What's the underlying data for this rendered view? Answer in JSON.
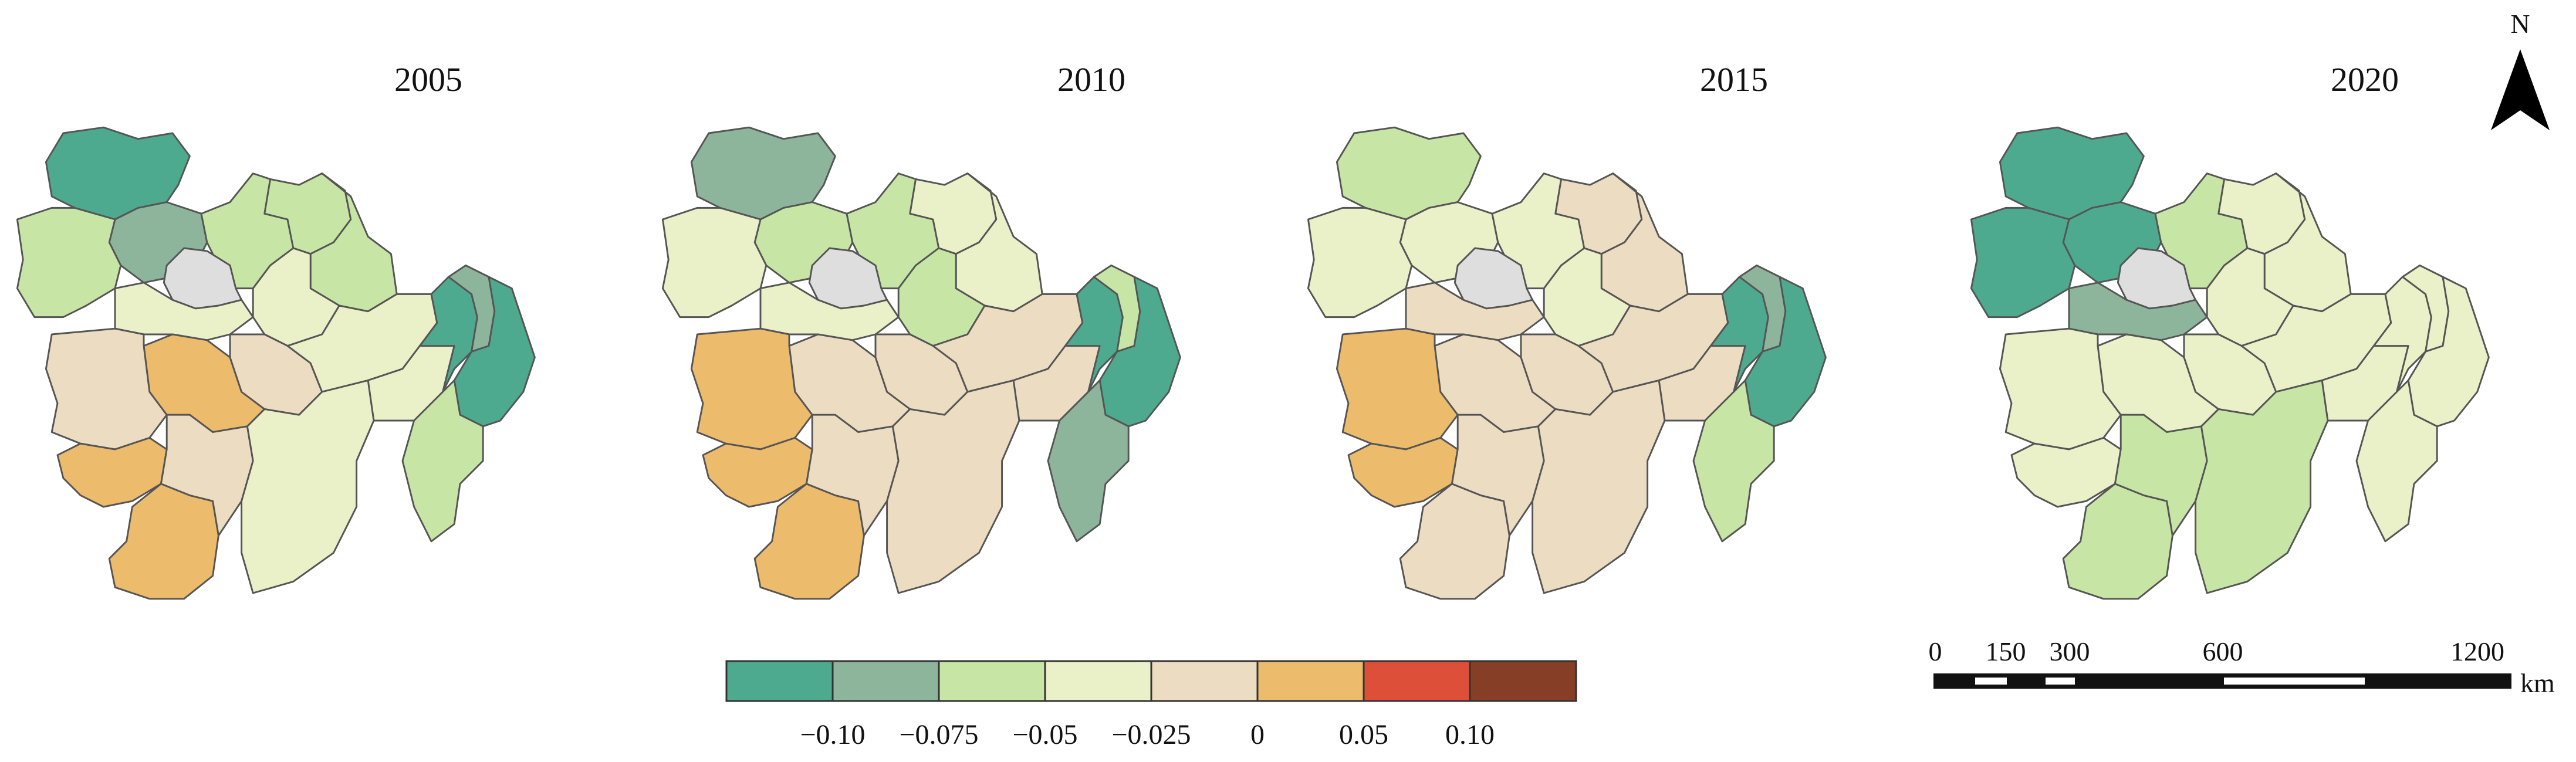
{
  "panels": [
    {
      "year": "2005",
      "classes": [
        "teal",
        "sage",
        "ltgreen",
        "cream",
        "tan",
        "orange",
        "gray"
      ]
    },
    {
      "year": "2010",
      "classes": [
        "teal",
        "sage",
        "ltgreen",
        "cream",
        "tan",
        "orange",
        "gray"
      ]
    },
    {
      "year": "2015",
      "classes": [
        "teal",
        "sage",
        "ltgreen",
        "cream",
        "tan",
        "orange",
        "gray"
      ]
    },
    {
      "year": "2020",
      "classes": [
        "teal",
        "sage",
        "ltgreen",
        "cream",
        "gray"
      ]
    }
  ],
  "maps": {
    "2005": {
      "nw": "teal",
      "nmid": "sage",
      "w": "ltgreen",
      "n2": "ltgreen",
      "ne1": "ltgreen",
      "ne2": "ltgreen",
      "c1": "cream",
      "c2": "orange",
      "c3": "tan",
      "sw1": "tan",
      "sw2": "orange",
      "s1": "orange",
      "s2": "tan",
      "se1": "cream",
      "se2": "cream",
      "e1": "teal",
      "e2": "sage",
      "e3": "teal",
      "e4": "ltgreen",
      "mid1": "cream",
      "mid2": "cream",
      "city": "gray"
    },
    "2010": {
      "nw": "sage",
      "nmid": "ltgreen",
      "w": "cream",
      "n2": "ltgreen",
      "ne1": "cream",
      "ne2": "cream",
      "c1": "cream",
      "c2": "tan",
      "c3": "tan",
      "sw1": "orange",
      "sw2": "orange",
      "s1": "orange",
      "s2": "tan",
      "se1": "tan",
      "se2": "tan",
      "e1": "teal",
      "e2": "ltgreen",
      "e3": "teal",
      "e4": "sage",
      "mid1": "ltgreen",
      "mid2": "tan",
      "city": "gray"
    },
    "2015": {
      "nw": "ltgreen",
      "nmid": "cream",
      "w": "cream",
      "n2": "cream",
      "ne1": "tan",
      "ne2": "tan",
      "c1": "tan",
      "c2": "tan",
      "c3": "tan",
      "sw1": "orange",
      "sw2": "orange",
      "s1": "tan",
      "s2": "tan",
      "se1": "tan",
      "se2": "tan",
      "e1": "teal",
      "e2": "sage",
      "e3": "teal",
      "e4": "ltgreen",
      "mid1": "cream",
      "mid2": "tan",
      "city": "gray"
    },
    "2020": {
      "nw": "teal",
      "nmid": "teal",
      "w": "teal",
      "n2": "ltgreen",
      "ne1": "cream",
      "ne2": "cream",
      "c1": "sage",
      "c2": "cream",
      "c3": "cream",
      "sw1": "cream",
      "sw2": "cream",
      "s1": "ltgreen",
      "s2": "ltgreen",
      "se1": "ltgreen",
      "se2": "cream",
      "e1": "cream",
      "e2": "cream",
      "e3": "cream",
      "e4": "cream",
      "mid1": "cream",
      "mid2": "cream",
      "city": "gray"
    }
  },
  "colors": {
    "teal": "#4daa8f",
    "sage": "#8db59b",
    "ltgreen": "#c7e6a6",
    "cream": "#eaf1c9",
    "tan": "#ecdcc2",
    "orange": "#ecbb6c",
    "red": "#dd4f38",
    "brown": "#873e26",
    "gray": "#dedede"
  },
  "legend": {
    "swatches": [
      "teal",
      "sage",
      "ltgreen",
      "cream",
      "tan",
      "orange",
      "red",
      "brown"
    ],
    "ticks": [
      "−0.10",
      "−0.075",
      "−0.05",
      "−0.025",
      "0",
      "0.05",
      "0.10"
    ]
  },
  "scalebar": {
    "labels": [
      "0",
      "150",
      "300",
      "600",
      "1200"
    ],
    "unit": "km"
  },
  "north_arrow": {
    "label": "N"
  }
}
